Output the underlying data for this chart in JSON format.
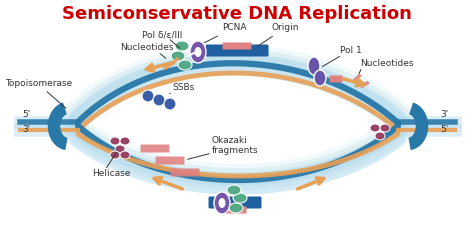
{
  "title": "Semiconservative DNA Replication",
  "title_color": "#cc0000",
  "title_fontsize": 13,
  "bg_color": "#ffffff",
  "labels": {
    "pcna": "PCNA",
    "origin": "Origin",
    "pol_delta": "Pol δ/ε/III",
    "nucleotides_left": "Nucleotides",
    "topoisomerase": "Topoisomerase",
    "ssbs": "SSBs",
    "helicase": "Helicase",
    "okazaki": "Okazaki\nfragments",
    "pol1": "Pol 1",
    "nucleotides_right": "Nucleotides",
    "five_prime_left": "5'",
    "three_prime_left": "3'",
    "three_prime_right": "3'",
    "five_prime_right": "5'"
  },
  "colors": {
    "dna_blue": "#2878a8",
    "dna_orange": "#e8a055",
    "dna_light": "#b8ddf0",
    "origin_blue": "#2060a0",
    "pink_bar": "#e08080",
    "pcna_purple": "#7755aa",
    "pol_green": "#55aa88",
    "helicase_maroon": "#994466",
    "ssbs_blue": "#3a5ea8",
    "pol1_purple": "#6655aa",
    "label_color": "#333333",
    "clamp_blue": "#2878a8"
  }
}
